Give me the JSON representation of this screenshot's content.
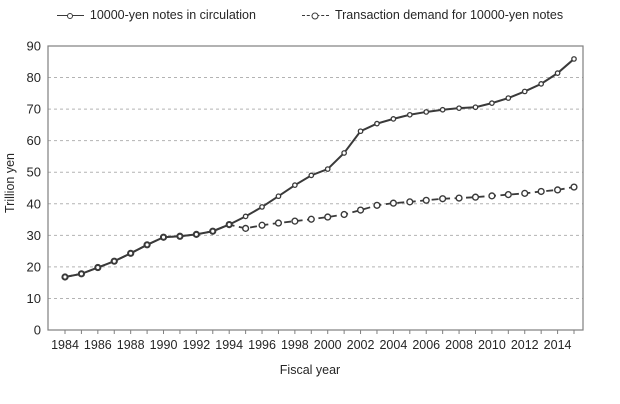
{
  "legend": {
    "series1_label": "10000-yen notes in circulation",
    "series2_label": "Transaction demand for 10000-yen notes"
  },
  "chart_data": {
    "type": "line",
    "title": "",
    "xlabel": "Fiscal year",
    "ylabel": "Trillion yen",
    "ylim": [
      0,
      90
    ],
    "ytick_step": 10,
    "xticks_every": 2,
    "grid": "horizontal-dashed",
    "legend_position": "top",
    "x": [
      1984,
      1985,
      1986,
      1987,
      1988,
      1989,
      1990,
      1991,
      1992,
      1993,
      1994,
      1995,
      1996,
      1997,
      1998,
      1999,
      2000,
      2001,
      2002,
      2003,
      2004,
      2005,
      2006,
      2007,
      2008,
      2009,
      2010,
      2011,
      2012,
      2013,
      2014,
      2015
    ],
    "series": [
      {
        "name": "10000-yen notes in circulation",
        "style": "solid",
        "marker": "small-open-circle",
        "values": [
          16.8,
          17.8,
          19.8,
          21.8,
          24.3,
          27.0,
          29.4,
          29.7,
          30.3,
          31.3,
          33.4,
          36.0,
          39.0,
          42.4,
          45.9,
          49.0,
          51.0,
          56.1,
          63.0,
          65.4,
          66.9,
          68.2,
          69.1,
          69.8,
          70.3,
          70.6,
          71.9,
          73.5,
          75.6,
          78.0,
          81.4,
          85.9
        ]
      },
      {
        "name": "Transaction demand for 10000-yen notes",
        "style": "dashed",
        "marker": "open-circle",
        "values": [
          16.8,
          17.8,
          19.8,
          21.8,
          24.3,
          27.0,
          29.4,
          29.7,
          30.3,
          31.3,
          33.4,
          32.2,
          33.2,
          33.9,
          34.5,
          35.1,
          35.8,
          36.6,
          38.0,
          39.5,
          40.2,
          40.6,
          41.1,
          41.6,
          41.8,
          42.1,
          42.5,
          42.9,
          43.3,
          43.9,
          44.4,
          45.3
        ]
      }
    ],
    "colors": {
      "line": "#3a3a3a",
      "grid": "#b3b3b3",
      "frame": "#7f7f7f",
      "text": "#262626",
      "background": "#ffffff"
    }
  }
}
